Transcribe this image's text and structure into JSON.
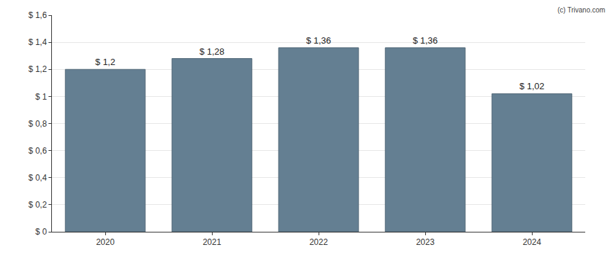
{
  "chart_data": {
    "type": "bar",
    "categories": [
      "2020",
      "2021",
      "2022",
      "2023",
      "2024"
    ],
    "values": [
      1.2,
      1.28,
      1.36,
      1.36,
      1.02
    ],
    "value_labels": [
      "$ 1,2",
      "$ 1,28",
      "$ 1,36",
      "$ 1,36",
      "$ 1,02"
    ],
    "data_labels": true,
    "color": "#647f92",
    "ylim": [
      0,
      1.6
    ],
    "yticks": [
      {
        "value": 0,
        "label": "$ 0"
      },
      {
        "value": 0.2,
        "label": "$ 0,2"
      },
      {
        "value": 0.4,
        "label": "$ 0,4"
      },
      {
        "value": 0.6,
        "label": "$ 0,6"
      },
      {
        "value": 0.8,
        "label": "$ 0,8"
      },
      {
        "value": 1,
        "label": "$ 1"
      },
      {
        "value": 1.2,
        "label": "$ 1,2"
      },
      {
        "value": 1.4,
        "label": "$ 1,4"
      },
      {
        "value": 1.6,
        "label": "$ 1,6"
      }
    ],
    "grid": true,
    "annotation": "(c) Trivano.com"
  }
}
